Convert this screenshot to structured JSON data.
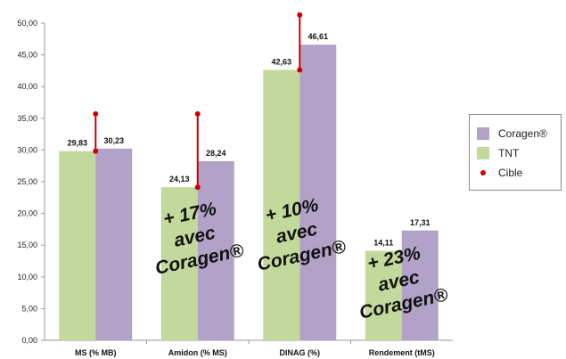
{
  "chart_data": {
    "type": "bar",
    "categories": [
      "MS (% MB)",
      "Amidon (% MS)",
      "DINAG (%)",
      "Rendement (tMS)"
    ],
    "series": [
      {
        "name": "TNT",
        "color": "#c2d99b",
        "values": [
          29.83,
          24.13,
          42.63,
          14.11
        ],
        "labels": [
          "29,83",
          "24,13",
          "42,63",
          "14,11"
        ]
      },
      {
        "name": "Coragen®",
        "color": "#b2a2c8",
        "values": [
          30.23,
          28.24,
          46.61,
          17.31
        ],
        "labels": [
          "30,23",
          "28,24",
          "46,61",
          "17,31"
        ]
      }
    ],
    "cible": {
      "name": "Cible",
      "color": "#cc0000",
      "values": [
        35.7,
        35.7,
        51.3,
        null
      ]
    },
    "annotations": [
      {
        "category": "Amidon (% MS)",
        "lines": [
          "+ 17%",
          "avec",
          "Coragen®"
        ]
      },
      {
        "category": "DINAG (%)",
        "lines": [
          "+ 10%",
          "avec",
          "Coragen®"
        ]
      },
      {
        "category": "Rendement (tMS)",
        "lines": [
          "+ 23%",
          "avec",
          "Coragen®"
        ]
      }
    ],
    "ylim": [
      0,
      50
    ],
    "yticks": [
      "0,00",
      "5,00",
      "10,00",
      "15,00",
      "20,00",
      "25,00",
      "30,00",
      "35,00",
      "40,00",
      "45,00",
      "50,00"
    ],
    "legend_position": "right",
    "legend_order": [
      "Coragen®",
      "TNT",
      "Cible"
    ],
    "grid": false
  }
}
